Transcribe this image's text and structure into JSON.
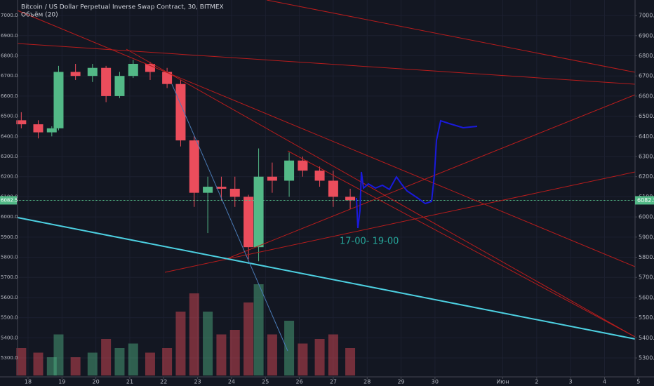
{
  "chart_data": {
    "type": "candlestick",
    "title": "Bitcoin / US Dollar Perpetual Inverse Swap Contract, 30, BITMEX",
    "subtitle": "Объём (20)",
    "annotation": "17-00- 19-00",
    "current_price": 6082.5,
    "up_color": "#53b987",
    "down_color": "#eb4d5c",
    "grid": true,
    "x": [
      17.8,
      18.3,
      18.7,
      18.9,
      19.4,
      19.9,
      20.3,
      20.7,
      21.1,
      21.6,
      22.1,
      22.5,
      22.9,
      23.3,
      23.7,
      24.1,
      24.5,
      24.8,
      25.2,
      25.7,
      26.1,
      26.6,
      27.0,
      27.5
    ],
    "open": [
      6480,
      6460,
      6420,
      6440,
      6720,
      6700,
      6740,
      6600,
      6700,
      6760,
      6720,
      6660,
      6380,
      6120,
      6150,
      6140,
      6100,
      5850,
      6200,
      6180,
      6280,
      6230,
      6180,
      6100
    ],
    "high": [
      6520,
      6480,
      6450,
      6750,
      6760,
      6760,
      6750,
      6720,
      6780,
      6770,
      6740,
      6680,
      6400,
      6200,
      6200,
      6200,
      6110,
      6340,
      6270,
      6320,
      6300,
      6250,
      6230,
      6140
    ],
    "low": [
      6440,
      6390,
      6400,
      6430,
      6680,
      6670,
      6570,
      6590,
      6690,
      6680,
      6640,
      6350,
      6050,
      5920,
      6080,
      6050,
      5790,
      5780,
      6120,
      6100,
      6200,
      6150,
      6050,
      6040
    ],
    "close": [
      6460,
      6420,
      6440,
      6720,
      6700,
      6740,
      6600,
      6700,
      6760,
      6720,
      6660,
      6380,
      6120,
      6150,
      6140,
      6100,
      5850,
      6200,
      6180,
      6280,
      6230,
      6180,
      6100,
      6082.5
    ],
    "volume": [
      30,
      25,
      20,
      45,
      20,
      25,
      40,
      30,
      35,
      25,
      30,
      70,
      90,
      70,
      45,
      50,
      80,
      100,
      45,
      60,
      35,
      40,
      45,
      30
    ],
    "xlim": [
      17.69,
      35.9
    ],
    "xticks": [
      18,
      19,
      20,
      21,
      22,
      23,
      24,
      25,
      26,
      27,
      28,
      29,
      30,
      {
        "value": 32,
        "label": "Июн"
      },
      {
        "value": 33,
        "label": "2"
      },
      {
        "value": 34,
        "label": "3"
      },
      {
        "value": 35,
        "label": "4"
      },
      {
        "value": 36,
        "label": "5"
      }
    ],
    "ylim": [
      5213,
      7077
    ],
    "yticks": [
      {
        "value": 5300,
        "label": "5300.0"
      },
      {
        "value": 5400,
        "label": "5400.0"
      },
      {
        "value": 5500,
        "label": "5500.0"
      },
      {
        "value": 5600,
        "label": "5600.0"
      },
      {
        "value": 5700,
        "label": "5700.0"
      },
      {
        "value": 5800,
        "label": "5800.0"
      },
      {
        "value": 5900,
        "label": "5900.0"
      },
      {
        "value": 6000,
        "label": "6000.0"
      },
      {
        "value": 6100,
        "label": "6100.0"
      },
      {
        "value": 6200,
        "label": "6200.0"
      },
      {
        "value": 6300,
        "label": "6300.0"
      },
      {
        "value": 6400,
        "label": "6400.0"
      },
      {
        "value": 6500,
        "label": "6500.0"
      },
      {
        "value": 6600,
        "label": "6600.0"
      },
      {
        "value": 6700,
        "label": "6700.0"
      },
      {
        "value": 6800,
        "label": "6800.0"
      },
      {
        "value": 6900,
        "label": "6900.0"
      },
      {
        "value": 7000,
        "label": "7000.0"
      }
    ]
  }
}
